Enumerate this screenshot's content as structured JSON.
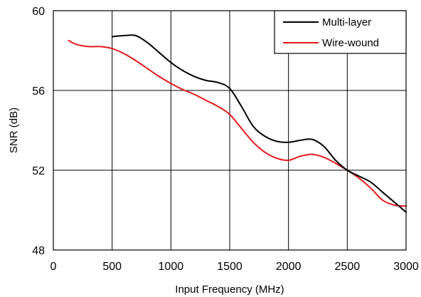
{
  "chart_data": {
    "type": "line",
    "title": "",
    "xlabel": "Input Frequency (MHz)",
    "ylabel": "SNR (dB)",
    "xlim": [
      0,
      3000
    ],
    "ylim": [
      48,
      60
    ],
    "xticks": [
      0,
      500,
      1000,
      1500,
      2000,
      2500,
      3000
    ],
    "yticks": [
      48,
      52,
      56,
      60
    ],
    "x_tick_labels": [
      "0",
      "500",
      "1000",
      "1500",
      "2000",
      "2500",
      "3000"
    ],
    "y_tick_labels": [
      "48",
      "52",
      "56",
      "60"
    ],
    "grid": true,
    "legend_position": "top-right",
    "series": [
      {
        "name": "Multi-layer",
        "color": "#000000",
        "x": [
          500,
          600,
          700,
          800,
          900,
          1000,
          1100,
          1200,
          1300,
          1400,
          1500,
          1600,
          1700,
          1800,
          1900,
          2000,
          2100,
          2200,
          2300,
          2400,
          2500,
          2600,
          2700,
          2800,
          2900,
          3000
        ],
        "y": [
          58.7,
          58.75,
          58.75,
          58.4,
          57.9,
          57.4,
          57.0,
          56.7,
          56.5,
          56.4,
          56.1,
          55.2,
          54.2,
          53.7,
          53.45,
          53.4,
          53.5,
          53.55,
          53.2,
          52.5,
          52.0,
          51.7,
          51.4,
          50.9,
          50.4,
          49.9
        ]
      },
      {
        "name": "Wire-wound",
        "color": "#e31a1c",
        "x": [
          130,
          200,
          300,
          400,
          500,
          600,
          700,
          800,
          900,
          1000,
          1100,
          1200,
          1300,
          1400,
          1500,
          1600,
          1700,
          1800,
          1900,
          2000,
          2100,
          2200,
          2300,
          2400,
          2500,
          2600,
          2700,
          2800,
          2900,
          3000
        ],
        "y": [
          58.5,
          58.3,
          58.2,
          58.2,
          58.1,
          57.85,
          57.5,
          57.1,
          56.7,
          56.35,
          56.05,
          55.8,
          55.5,
          55.2,
          54.8,
          54.1,
          53.4,
          52.9,
          52.6,
          52.5,
          52.7,
          52.8,
          52.65,
          52.35,
          52.0,
          51.6,
          51.1,
          50.5,
          50.25,
          50.2
        ]
      }
    ]
  }
}
